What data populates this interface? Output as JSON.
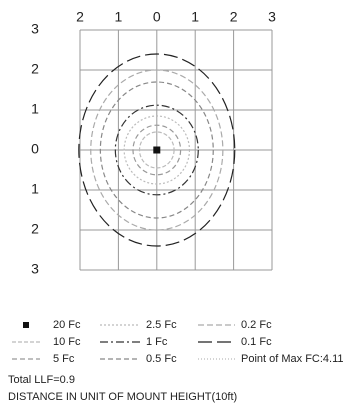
{
  "chart_data": {
    "type": "isoline",
    "xlim": [
      -2,
      3
    ],
    "ylim": [
      -3,
      3
    ],
    "xticks": [
      {
        "value": -2,
        "label": "2"
      },
      {
        "value": -1,
        "label": "1"
      },
      0,
      1,
      2,
      3
    ],
    "yticks": [
      3,
      2,
      1,
      0,
      {
        "value": -1,
        "label": "1"
      },
      {
        "value": -2,
        "label": "2"
      },
      {
        "value": -3,
        "label": "3"
      }
    ],
    "grid": true,
    "series": [
      {
        "name": "20 Fc",
        "marker": "square",
        "color": "#111111",
        "x": 0,
        "y": 0
      },
      {
        "name": "2.5 Fc",
        "color": "#bbbbbb",
        "dash": "2,2",
        "rx": 0.85,
        "ry": 0.85
      },
      {
        "name": "0.2 Fc",
        "color": "#aaaaaa",
        "dash": "6,3",
        "rx": 1.72,
        "ry": 2.0
      },
      {
        "name": "10 Fc",
        "color": "#bbbbbb",
        "dash": "4,2",
        "rx": 0.45,
        "ry": 0.45
      },
      {
        "name": "1 Fc",
        "color": "#333333",
        "dash": "8,3,2,3",
        "rx": 1.08,
        "ry": 1.12
      },
      {
        "name": "0.1 Fc",
        "color": "#222222",
        "dash": "14,5",
        "rx": 2.03,
        "ry": 2.4
      },
      {
        "name": "5 Fc",
        "color": "#999999",
        "dash": "5,3",
        "rx": 0.62,
        "ry": 0.62
      },
      {
        "name": "0.5 Fc",
        "color": "#888888",
        "dash": "5,3",
        "rx": 1.47,
        "ry": 1.7
      },
      {
        "name": "Point of Max FC:4.11",
        "color": "#bbbbbb",
        "dash": "1,2"
      }
    ],
    "notes": [
      "Total LLF=0.9",
      "DISTANCE IN UNIT OF MOUNT HEIGHT(10ft)"
    ]
  }
}
